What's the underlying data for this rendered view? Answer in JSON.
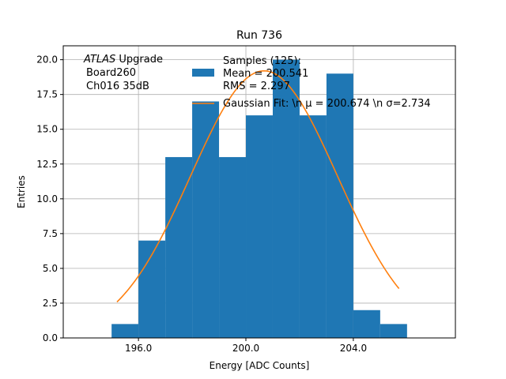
{
  "chart_data": {
    "type": "histogram",
    "title": "Run 736",
    "xlabel": "Energy [ADC Counts]",
    "ylabel": "Entries",
    "xlim": [
      193.2,
      207.8
    ],
    "ylim": [
      0,
      21
    ],
    "xticks": [
      196.0,
      200.0,
      204.0
    ],
    "xtick_labels": [
      "196.0",
      "200.0",
      "204.0"
    ],
    "yticks": [
      0,
      2.5,
      5,
      7.5,
      10,
      12.5,
      15,
      17.5,
      20
    ],
    "ytick_labels": [
      "0.0",
      "2.5",
      "5.0",
      "7.5",
      "10.0",
      "12.5",
      "15.0",
      "17.5",
      "20.0"
    ],
    "grid": true,
    "bins": [
      {
        "x0": 195.0,
        "x1": 196.0,
        "count": 1
      },
      {
        "x0": 196.0,
        "x1": 197.0,
        "count": 7
      },
      {
        "x0": 197.0,
        "x1": 198.0,
        "count": 13
      },
      {
        "x0": 198.0,
        "x1": 199.0,
        "count": 17
      },
      {
        "x0": 199.0,
        "x1": 200.0,
        "count": 13
      },
      {
        "x0": 200.0,
        "x1": 201.0,
        "count": 16
      },
      {
        "x0": 201.0,
        "x1": 202.0,
        "count": 20
      },
      {
        "x0": 202.0,
        "x1": 203.0,
        "count": 16
      },
      {
        "x0": 203.0,
        "x1": 204.0,
        "count": 19
      },
      {
        "x0": 204.0,
        "x1": 205.0,
        "count": 2
      },
      {
        "x0": 205.0,
        "x1": 206.0,
        "count": 1
      }
    ],
    "fit": {
      "mu": 200.674,
      "sigma": 2.734,
      "amplitude": 19.2,
      "x_range": [
        195.2,
        205.7
      ]
    },
    "colors": {
      "bars": "#1f77b4",
      "fit": "#ff7f0e",
      "grid": "#b0b0b0"
    },
    "annotation": {
      "lines": [
        {
          "italic": "ATLAS",
          "rest": " Upgrade"
        },
        {
          "italic": "",
          "rest": "Board260"
        },
        {
          "italic": "",
          "rest": "Ch016 35dB"
        }
      ]
    },
    "legend": {
      "position": "top-right",
      "hist_label": [
        "Samples (125):",
        " Mean = 200.541",
        " RMS = 2.297"
      ],
      "fit_label": "Gaussian Fit: \\n μ = 200.674 \\n σ=2.734"
    }
  }
}
